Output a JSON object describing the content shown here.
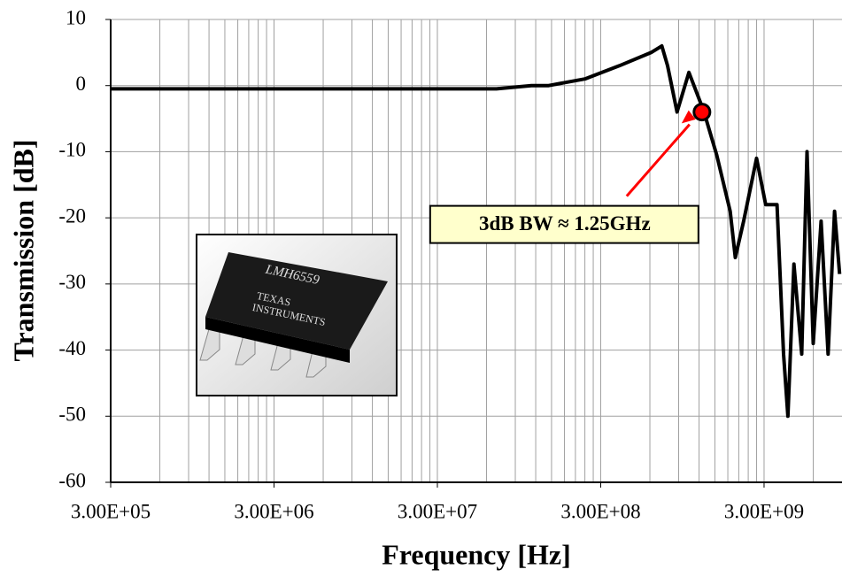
{
  "chart_data": {
    "type": "line",
    "x_label": "Frequency [Hz]",
    "y_label": "Transmission [dB]",
    "log_x": true,
    "grid": true,
    "xlim": [
      300000,
      9000000000
    ],
    "ylim": [
      -60,
      10
    ],
    "xticks": [
      {
        "value": 300000,
        "label": "3.00E+05"
      },
      {
        "value": 3000000,
        "label": "3.00E+06"
      },
      {
        "value": 30000000,
        "label": "3.00E+07"
      },
      {
        "value": 300000000,
        "label": "3.00E+08"
      },
      {
        "value": 3000000000,
        "label": "3.00E+09"
      }
    ],
    "yticks": [
      10,
      0,
      -10,
      -20,
      -30,
      -40,
      -50,
      -60
    ],
    "series": [
      {
        "name": "Transmission",
        "color": "#000000",
        "x": [
          300000,
          1000000,
          10000000,
          69000000,
          113000000,
          144000000,
          240000000,
          390000000,
          610000000,
          710000000,
          770000000,
          880000000,
          1040000000,
          1280000000,
          1540000000,
          1860000000,
          2000000000,
          2250000000,
          2700000000,
          3070000000,
          3600000000,
          3950000000,
          4200000000,
          4570000000,
          5100000000,
          5500000000,
          6000000000,
          6700000000,
          7400000000,
          8100000000,
          8700000000
        ],
        "values": [
          -0.5,
          -0.5,
          -0.5,
          -0.5,
          0,
          0,
          1,
          3,
          5,
          6,
          3,
          -4,
          2,
          -3.8,
          -10.5,
          -19,
          -26,
          -20.5,
          -11,
          -18,
          -18,
          -40.6,
          -50,
          -27,
          -40.6,
          -10,
          -39,
          -20.5,
          -40.6,
          -19,
          -28.5
        ]
      }
    ],
    "annotation": {
      "text": "3dB BW ≈ 1.25GHz",
      "x": 1250000000,
      "y": -4,
      "color": "#ff0000"
    }
  },
  "inset": {
    "chip_label": "LMH6559",
    "brand_top": "TEXAS",
    "brand_bottom": "INSTRUMENTS"
  }
}
